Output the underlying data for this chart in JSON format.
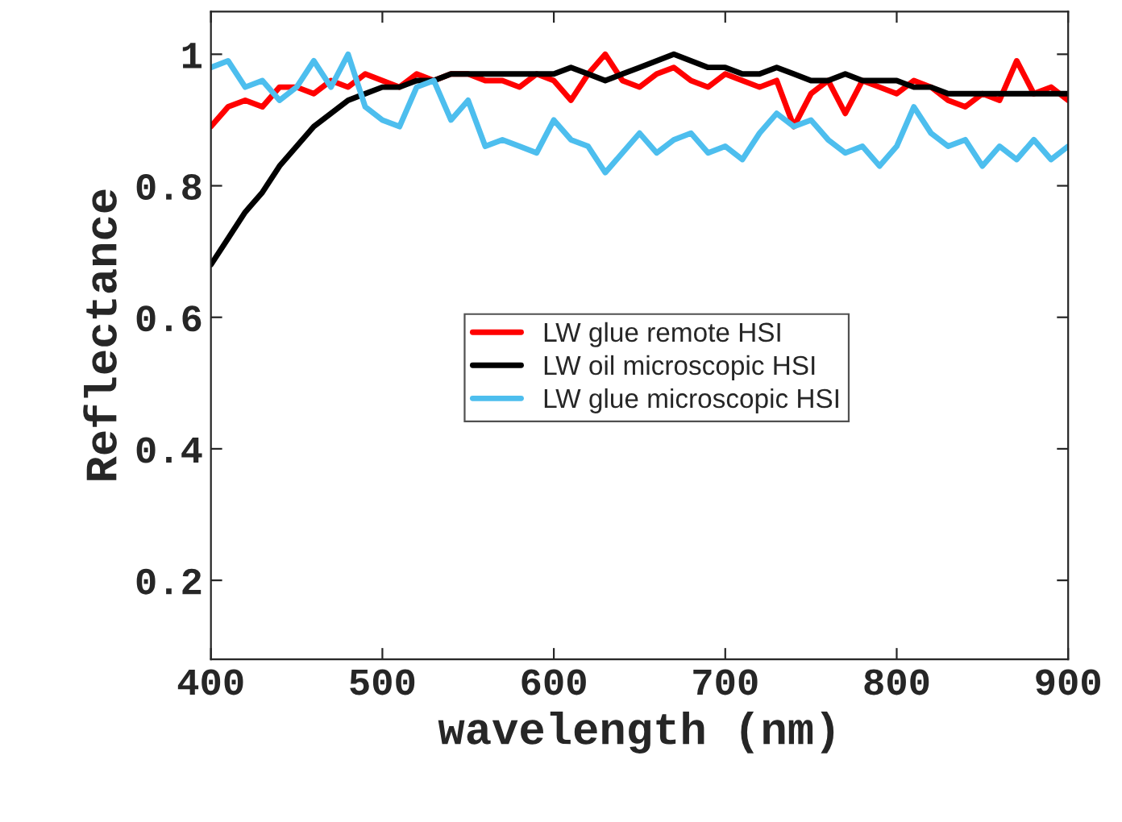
{
  "chart_data": {
    "type": "line",
    "xlabel": "wavelength (nm)",
    "ylabel": "Reflectance",
    "x": [
      400,
      410,
      420,
      430,
      440,
      450,
      460,
      470,
      480,
      490,
      500,
      510,
      520,
      530,
      540,
      550,
      560,
      570,
      580,
      590,
      600,
      610,
      620,
      630,
      640,
      650,
      660,
      670,
      680,
      690,
      700,
      710,
      720,
      730,
      740,
      750,
      760,
      770,
      780,
      790,
      800,
      810,
      820,
      830,
      840,
      850,
      860,
      870,
      880,
      890,
      900
    ],
    "series": [
      {
        "name": "LW glue remote HSI",
        "color": "#ff0000",
        "values": [
          0.89,
          0.92,
          0.93,
          0.92,
          0.95,
          0.95,
          0.94,
          0.96,
          0.95,
          0.97,
          0.96,
          0.95,
          0.97,
          0.96,
          0.97,
          0.97,
          0.96,
          0.96,
          0.95,
          0.97,
          0.96,
          0.93,
          0.97,
          1.0,
          0.96,
          0.95,
          0.97,
          0.98,
          0.96,
          0.95,
          0.97,
          0.96,
          0.95,
          0.96,
          0.89,
          0.94,
          0.96,
          0.91,
          0.96,
          0.95,
          0.94,
          0.96,
          0.95,
          0.93,
          0.92,
          0.94,
          0.93,
          0.99,
          0.94,
          0.95,
          0.93
        ]
      },
      {
        "name": "LW oil microscopic HSI",
        "color": "#000000",
        "values": [
          0.68,
          0.72,
          0.76,
          0.79,
          0.83,
          0.86,
          0.89,
          0.91,
          0.93,
          0.94,
          0.95,
          0.95,
          0.96,
          0.96,
          0.97,
          0.97,
          0.97,
          0.97,
          0.97,
          0.97,
          0.97,
          0.98,
          0.97,
          0.96,
          0.97,
          0.98,
          0.99,
          1.0,
          0.99,
          0.98,
          0.98,
          0.97,
          0.97,
          0.98,
          0.97,
          0.96,
          0.96,
          0.97,
          0.96,
          0.96,
          0.96,
          0.95,
          0.95,
          0.94,
          0.94,
          0.94,
          0.94,
          0.94,
          0.94,
          0.94,
          0.94
        ]
      },
      {
        "name": "LW glue microscopic HSI",
        "color": "#4dbeee",
        "values": [
          0.98,
          0.99,
          0.95,
          0.96,
          0.93,
          0.95,
          0.99,
          0.95,
          1.0,
          0.92,
          0.9,
          0.89,
          0.95,
          0.96,
          0.9,
          0.93,
          0.86,
          0.87,
          0.86,
          0.85,
          0.9,
          0.87,
          0.86,
          0.82,
          0.85,
          0.88,
          0.85,
          0.87,
          0.88,
          0.85,
          0.86,
          0.84,
          0.88,
          0.91,
          0.89,
          0.9,
          0.87,
          0.85,
          0.86,
          0.83,
          0.86,
          0.92,
          0.88,
          0.86,
          0.87,
          0.83,
          0.86,
          0.84,
          0.87,
          0.84,
          0.86
        ]
      }
    ],
    "xlim": [
      400,
      900
    ],
    "xticks": [
      400,
      500,
      600,
      700,
      800,
      900
    ],
    "ylim": [
      0.08,
      1.065
    ],
    "yticks": [
      0.2,
      0.4,
      0.6,
      0.8,
      {
        "value": 1,
        "label": "1"
      }
    ],
    "grid": false,
    "legend": "center",
    "line_style": "solid",
    "marker": "none"
  }
}
